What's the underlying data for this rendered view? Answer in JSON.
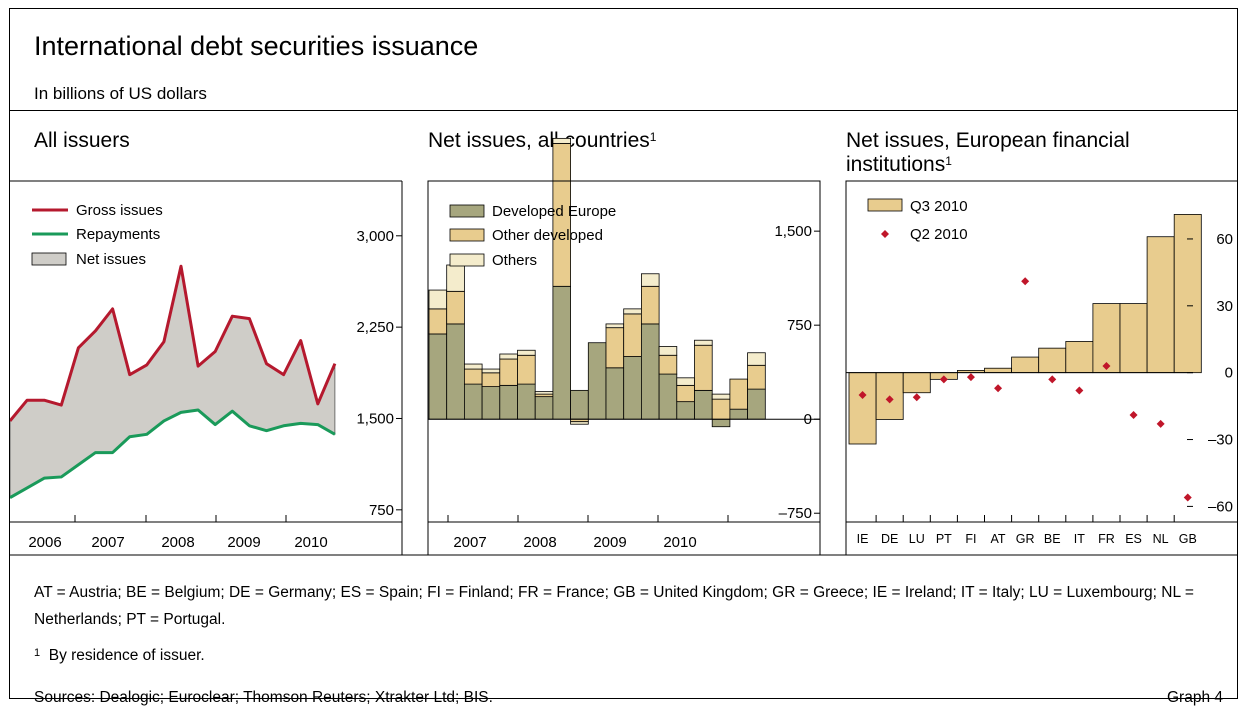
{
  "header": {
    "title": "International debt securities issuance",
    "subtitle": "In billions of US dollars"
  },
  "colors": {
    "gross": "#b5192e",
    "repay": "#1a9a5a",
    "net_fill": "#cfcdc8",
    "dev_europe": "#a6a67e",
    "other_dev": "#e8cc8e",
    "others": "#f4eccc",
    "q3": "#e8cc8e",
    "q2": "#c0162a"
  },
  "panels": [
    {
      "title": "All issuers",
      "sup": ""
    },
    {
      "title": "Net issues, all countries",
      "sup": "1"
    },
    {
      "title": "Net issues, European financial institutions",
      "sup": "1"
    }
  ],
  "chart_data": [
    {
      "type": "line",
      "title": "All issuers",
      "x_labels": [
        "2006",
        "2007",
        "2008",
        "2009",
        "2010"
      ],
      "y_ticks": [
        "750",
        "1,500",
        "2,250",
        "3,000"
      ],
      "ylim": [
        650,
        3450
      ],
      "series": [
        {
          "name": "Gross issues",
          "values": [
            1480,
            1650,
            1650,
            1610,
            2080,
            2220,
            2400,
            1860,
            1940,
            2130,
            2750,
            1930,
            2050,
            2340,
            2320,
            1950,
            1860,
            2140,
            1620,
            1950
          ]
        },
        {
          "name": "Repayments",
          "values": [
            850,
            930,
            1010,
            1020,
            1120,
            1220,
            1220,
            1350,
            1370,
            1480,
            1550,
            1570,
            1450,
            1560,
            1440,
            1400,
            1440,
            1460,
            1450,
            1370
          ]
        },
        {
          "name": "Net issues",
          "kind": "area"
        }
      ],
      "legend": "top-left"
    },
    {
      "type": "bar",
      "stacked": true,
      "title": "Net issues, all countries",
      "x_labels": [
        "2007",
        "2008",
        "2009",
        "2010"
      ],
      "y_ticks": [
        "–750",
        "0",
        "750",
        "1,500"
      ],
      "ylim": [
        -820,
        1900
      ],
      "series": [
        {
          "name": "Developed Europe",
          "values": [
            680,
            760,
            280,
            260,
            270,
            280,
            180,
            1060,
            230,
            610,
            410,
            500,
            760,
            360,
            140,
            230,
            -60,
            80,
            240
          ]
        },
        {
          "name": "Other developed",
          "values": [
            200,
            260,
            120,
            110,
            210,
            230,
            20,
            1140,
            -20,
            0,
            320,
            340,
            300,
            150,
            130,
            360,
            160,
            240,
            190
          ]
        },
        {
          "name": "Others",
          "values": [
            150,
            210,
            40,
            30,
            40,
            40,
            20,
            40,
            -20,
            0,
            30,
            40,
            100,
            70,
            60,
            40,
            40,
            0,
            100
          ]
        }
      ],
      "legend": "top-left"
    },
    {
      "type": "bar",
      "title": "Net issues, European financial institutions",
      "categories": [
        "IE",
        "DE",
        "LU",
        "PT",
        "FI",
        "AT",
        "GR",
        "BE",
        "IT",
        "FR",
        "ES",
        "NL",
        "GB"
      ],
      "y_ticks": [
        "–60",
        "–30",
        "0",
        "30",
        "60"
      ],
      "ylim": [
        -67,
        86
      ],
      "series": [
        {
          "name": "Q3 2010",
          "values": [
            -32,
            -21,
            -9,
            -3,
            1,
            2,
            7,
            11,
            14,
            31,
            31,
            61,
            71
          ]
        },
        {
          "name": "Q2 2010",
          "kind": "marker",
          "values": [
            -10,
            -12,
            -11,
            -3,
            -2,
            -7,
            41,
            -3,
            -8,
            3,
            -19,
            -23,
            -56
          ]
        }
      ],
      "legend": "top-left"
    }
  ],
  "footer": {
    "abbreviations": "AT = Austria; BE = Belgium; DE = Germany; ES = Spain; FI = Finland; FR = France; GB = United Kingdom; GR = Greece; IE = Ireland; IT = Italy; LU = Luxembourg; NL = Netherlands; PT = Portugal.",
    "note_mark": "1",
    "note": "By residence of issuer.",
    "sources": "Sources: Dealogic; Euroclear; Thomson Reuters; Xtrakter Ltd; BIS.",
    "graph_id": "Graph 4"
  }
}
